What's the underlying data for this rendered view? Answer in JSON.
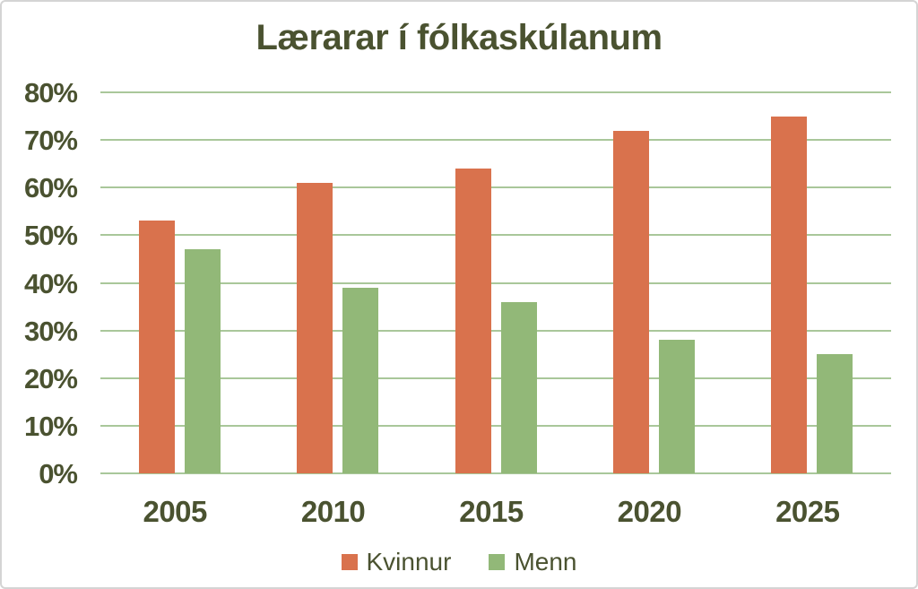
{
  "chart_data": {
    "type": "bar",
    "title": "Lærarar í fólkaskúlanum",
    "categories": [
      "2005",
      "2010",
      "2015",
      "2020",
      "2025"
    ],
    "series": [
      {
        "name": "Kvinnur",
        "color": "#D9724D",
        "values": [
          53,
          61,
          64,
          72,
          75
        ]
      },
      {
        "name": "Menn",
        "color": "#92B878",
        "values": [
          47,
          39,
          36,
          28,
          25
        ]
      }
    ],
    "xlabel": "",
    "ylabel": "",
    "ylim": [
      0,
      80
    ],
    "ytick_step": 10,
    "ytick_labels": [
      "0%",
      "10%",
      "20%",
      "30%",
      "40%",
      "50%",
      "60%",
      "70%",
      "80%"
    ],
    "grid": true,
    "legend_position": "bottom",
    "colors": {
      "text": "#4A5230",
      "gridline": "#A9C79A",
      "background": "#ffffff",
      "card_border": "#d4d4d4"
    }
  }
}
